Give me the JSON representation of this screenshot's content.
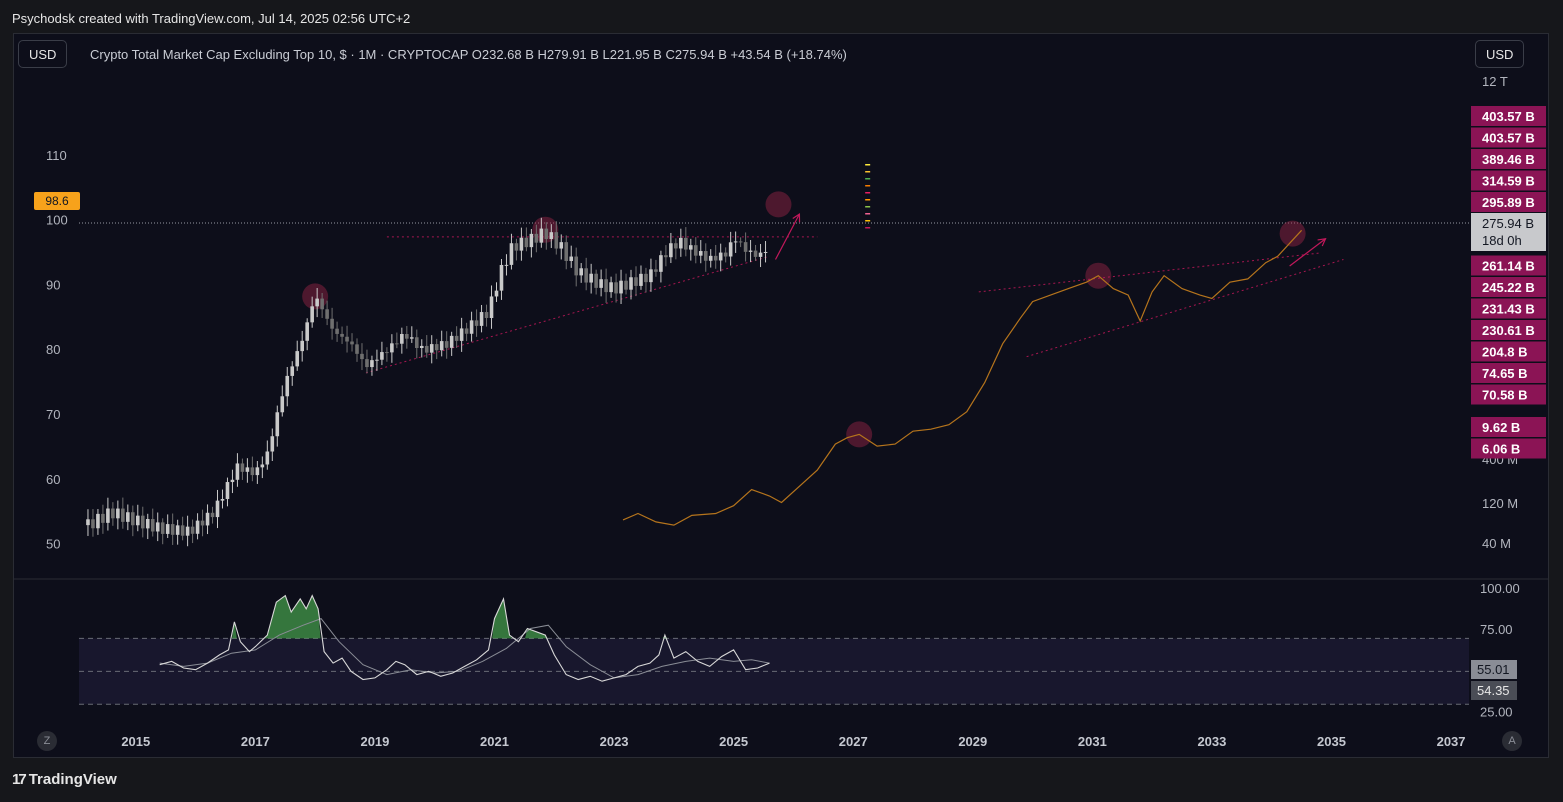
{
  "header": {
    "text": "Psychodsk created with TradingView.com, Jul 14, 2025 02:56 UTC+2"
  },
  "toolbar": {
    "left_currency": "USD",
    "right_currency": "USD"
  },
  "legend": {
    "text": "Crypto Total Market Cap Excluding Top 10, $ · 1M · CRYPTOCAP  O232.68 B  H279.91 B  L221.95 B  C275.94 B  +43.54 B (+18.74%)"
  },
  "price_flag": "98.6",
  "buttons": {
    "zoom": "Z",
    "auto": "A"
  },
  "footer": {
    "brand": "TradingView",
    "mark": "17"
  },
  "colors": {
    "background": "#0d0e1a",
    "bull": "#c9c9c9",
    "bear": "#6f6f6f",
    "overlay": "#b5741c",
    "accent": "#c2185b",
    "rsi_fill": "#4caf50",
    "price_flag": "#f7a21b"
  },
  "chart_data": [
    {
      "type": "candlestick",
      "title": "Crypto Total Market Cap Excluding Top 10, $ · 1M · CRYPTOCAP",
      "y_left_ticks": [
        "110",
        "100",
        "90",
        "80",
        "70",
        "60",
        "50"
      ],
      "y_left_range": [
        47,
        118
      ],
      "y_right_ticks": [
        "12 T",
        "400 M",
        "120 M",
        "40 M"
      ],
      "x_ticks": [
        "2015",
        "2017",
        "2019",
        "2021",
        "2023",
        "2025",
        "2027",
        "2029",
        "2031",
        "2033",
        "2035",
        "2037"
      ],
      "x_range": [
        2014.05,
        2037.3
      ],
      "ohlc_summary": {
        "open": "O232.68 B",
        "high": "H279.91 B",
        "low": "L221.95 B",
        "close": "C275.94 B",
        "change": "+43.54 B (+18.74%)"
      },
      "current_price_label": "275.94 B",
      "countdown_label": "18d 0h",
      "left_price_marker": "98.6",
      "price_scale_labels": [
        "403.57 B",
        "403.57 B",
        "389.46 B",
        "314.59 B",
        "295.89 B",
        "261.14 B",
        "245.22 B",
        "231.43 B",
        "230.61 B",
        "204.8 B",
        "74.65 B",
        "70.58 B",
        "9.62 B",
        "6.06 B"
      ],
      "close_path": [
        [
          2014.2,
          53
        ],
        [
          2014.6,
          55
        ],
        [
          2014.9,
          54
        ],
        [
          2015.4,
          52.5
        ],
        [
          2015.9,
          52
        ],
        [
          2016.3,
          55
        ],
        [
          2016.7,
          62
        ],
        [
          2017.0,
          61
        ],
        [
          2017.2,
          64
        ],
        [
          2017.5,
          75
        ],
        [
          2017.8,
          82
        ],
        [
          2018.0,
          88.5
        ],
        [
          2018.3,
          83
        ],
        [
          2018.6,
          81
        ],
        [
          2018.85,
          77.5
        ],
        [
          2019.2,
          80
        ],
        [
          2019.5,
          82.5
        ],
        [
          2019.8,
          80
        ],
        [
          2020.2,
          81
        ],
        [
          2020.5,
          83
        ],
        [
          2020.9,
          86
        ],
        [
          2021.1,
          92
        ],
        [
          2021.3,
          96
        ],
        [
          2021.6,
          97
        ],
        [
          2021.85,
          98.2
        ],
        [
          2022.1,
          96
        ],
        [
          2022.4,
          92
        ],
        [
          2022.8,
          90
        ],
        [
          2023.0,
          89.5
        ],
        [
          2023.3,
          90.5
        ],
        [
          2023.6,
          91.5
        ],
        [
          2023.9,
          95.5
        ],
        [
          2024.1,
          96.8
        ],
        [
          2024.3,
          95.5
        ],
        [
          2024.6,
          94
        ],
        [
          2024.9,
          95
        ],
        [
          2025.0,
          97.5
        ],
        [
          2025.2,
          95.5
        ],
        [
          2025.4,
          94.5
        ],
        [
          2025.6,
          95.8
        ]
      ],
      "overlay_path": [
        [
          2023.15,
          53.8
        ],
        [
          2023.4,
          54.8
        ],
        [
          2023.7,
          53.5
        ],
        [
          2024.0,
          53
        ],
        [
          2024.3,
          54.5
        ],
        [
          2024.7,
          54.8
        ],
        [
          2025.0,
          56
        ],
        [
          2025.3,
          58.5
        ],
        [
          2025.6,
          57.5
        ],
        [
          2025.8,
          56.5
        ],
        [
          2026.1,
          59
        ],
        [
          2026.4,
          61.5
        ],
        [
          2026.7,
          65.5
        ],
        [
          2026.9,
          66.5
        ],
        [
          2027.1,
          67
        ],
        [
          2027.4,
          65.2
        ],
        [
          2027.7,
          65.5
        ],
        [
          2028.0,
          67.5
        ],
        [
          2028.3,
          67.8
        ],
        [
          2028.6,
          68.5
        ],
        [
          2028.9,
          70.5
        ],
        [
          2029.2,
          75
        ],
        [
          2029.5,
          81
        ],
        [
          2029.8,
          85
        ],
        [
          2030.0,
          87.5
        ],
        [
          2030.3,
          88.5
        ],
        [
          2030.6,
          89.5
        ],
        [
          2030.9,
          90.5
        ],
        [
          2031.1,
          91.5
        ],
        [
          2031.35,
          89.5
        ],
        [
          2031.6,
          88.5
        ],
        [
          2031.8,
          84.5
        ],
        [
          2032.0,
          89
        ],
        [
          2032.2,
          91.5
        ],
        [
          2032.5,
          89.5
        ],
        [
          2032.8,
          88.5
        ],
        [
          2033.0,
          88
        ],
        [
          2033.3,
          90.5
        ],
        [
          2033.6,
          91
        ],
        [
          2033.9,
          93.5
        ],
        [
          2034.1,
          94.5
        ],
        [
          2034.3,
          96.5
        ],
        [
          2034.5,
          98.5
        ]
      ],
      "trend_lines": [
        {
          "from": [
            2018.85,
            76.5
          ],
          "to": [
            2025.6,
            94.5
          ],
          "style": "dotted"
        },
        {
          "from": [
            2019.2,
            97.5
          ],
          "to": [
            2026.4,
            97.5
          ],
          "style": "dotted"
        },
        {
          "from": [
            2029.1,
            89
          ],
          "to": [
            2034.8,
            95
          ],
          "style": "dotted"
        },
        {
          "from": [
            2029.9,
            79
          ],
          "to": [
            2035.2,
            94
          ],
          "style": "dotted"
        }
      ],
      "arrows": [
        {
          "from": [
            2025.7,
            94
          ],
          "to": [
            2026.1,
            101
          ]
        },
        {
          "from": [
            2034.3,
            93
          ],
          "to": [
            2034.9,
            97.2
          ]
        }
      ],
      "highlight_circles": [
        [
          2018.0,
          88.3
        ],
        [
          2021.85,
          98.6
        ],
        [
          2025.75,
          102.5
        ],
        [
          2027.1,
          67
        ],
        [
          2031.1,
          91.5
        ],
        [
          2034.35,
          98
        ]
      ]
    },
    {
      "type": "line",
      "title": "RSI",
      "y_ticks": [
        "100.00",
        "75.00",
        "25.00"
      ],
      "y_range": [
        18,
        100
      ],
      "band": [
        30,
        70
      ],
      "midline": 50,
      "value_labels": [
        "55.01",
        "54.35"
      ],
      "rsi": [
        [
          2015.4,
          54
        ],
        [
          2015.6,
          56
        ],
        [
          2015.8,
          52
        ],
        [
          2016.0,
          51
        ],
        [
          2016.2,
          55
        ],
        [
          2016.4,
          60
        ],
        [
          2016.55,
          63
        ],
        [
          2016.65,
          80
        ],
        [
          2016.75,
          68
        ],
        [
          2016.9,
          62
        ],
        [
          2017.0,
          65
        ],
        [
          2017.2,
          72
        ],
        [
          2017.35,
          92
        ],
        [
          2017.5,
          96
        ],
        [
          2017.6,
          86
        ],
        [
          2017.75,
          94
        ],
        [
          2017.85,
          88
        ],
        [
          2017.95,
          96
        ],
        [
          2018.05,
          88
        ],
        [
          2018.15,
          62
        ],
        [
          2018.3,
          55
        ],
        [
          2018.45,
          58
        ],
        [
          2018.6,
          50
        ],
        [
          2018.8,
          45
        ],
        [
          2019.0,
          46
        ],
        [
          2019.2,
          51
        ],
        [
          2019.35,
          56
        ],
        [
          2019.5,
          54
        ],
        [
          2019.7,
          48
        ],
        [
          2019.9,
          50
        ],
        [
          2020.1,
          47
        ],
        [
          2020.3,
          49
        ],
        [
          2020.5,
          53
        ],
        [
          2020.7,
          57
        ],
        [
          2020.9,
          63
        ],
        [
          2021.0,
          82
        ],
        [
          2021.15,
          94
        ],
        [
          2021.25,
          72
        ],
        [
          2021.4,
          68
        ],
        [
          2021.55,
          76
        ],
        [
          2021.7,
          74
        ],
        [
          2021.85,
          72
        ],
        [
          2022.0,
          60
        ],
        [
          2022.2,
          48
        ],
        [
          2022.4,
          45
        ],
        [
          2022.6,
          47
        ],
        [
          2022.8,
          44
        ],
        [
          2023.0,
          46
        ],
        [
          2023.2,
          48
        ],
        [
          2023.4,
          53
        ],
        [
          2023.6,
          55
        ],
        [
          2023.75,
          60
        ],
        [
          2023.85,
          72
        ],
        [
          2024.0,
          58
        ],
        [
          2024.2,
          62
        ],
        [
          2024.4,
          56
        ],
        [
          2024.6,
          53
        ],
        [
          2024.8,
          59
        ],
        [
          2025.0,
          63
        ],
        [
          2025.2,
          51
        ],
        [
          2025.4,
          52
        ],
        [
          2025.6,
          55
        ]
      ],
      "rsi_ma": [
        [
          2015.4,
          55
        ],
        [
          2015.8,
          53
        ],
        [
          2016.2,
          55
        ],
        [
          2016.6,
          61
        ],
        [
          2017.0,
          63
        ],
        [
          2017.4,
          72
        ],
        [
          2017.8,
          78
        ],
        [
          2018.1,
          82
        ],
        [
          2018.4,
          68
        ],
        [
          2018.8,
          54
        ],
        [
          2019.2,
          48
        ],
        [
          2019.6,
          51
        ],
        [
          2020.0,
          49
        ],
        [
          2020.4,
          50
        ],
        [
          2020.8,
          56
        ],
        [
          2021.2,
          64
        ],
        [
          2021.6,
          76
        ],
        [
          2021.9,
          78
        ],
        [
          2022.2,
          65
        ],
        [
          2022.6,
          54
        ],
        [
          2023.0,
          46
        ],
        [
          2023.4,
          48
        ],
        [
          2023.8,
          53
        ],
        [
          2024.2,
          56
        ],
        [
          2024.6,
          58
        ],
        [
          2025.0,
          56
        ],
        [
          2025.3,
          57
        ],
        [
          2025.6,
          55
        ]
      ]
    }
  ]
}
